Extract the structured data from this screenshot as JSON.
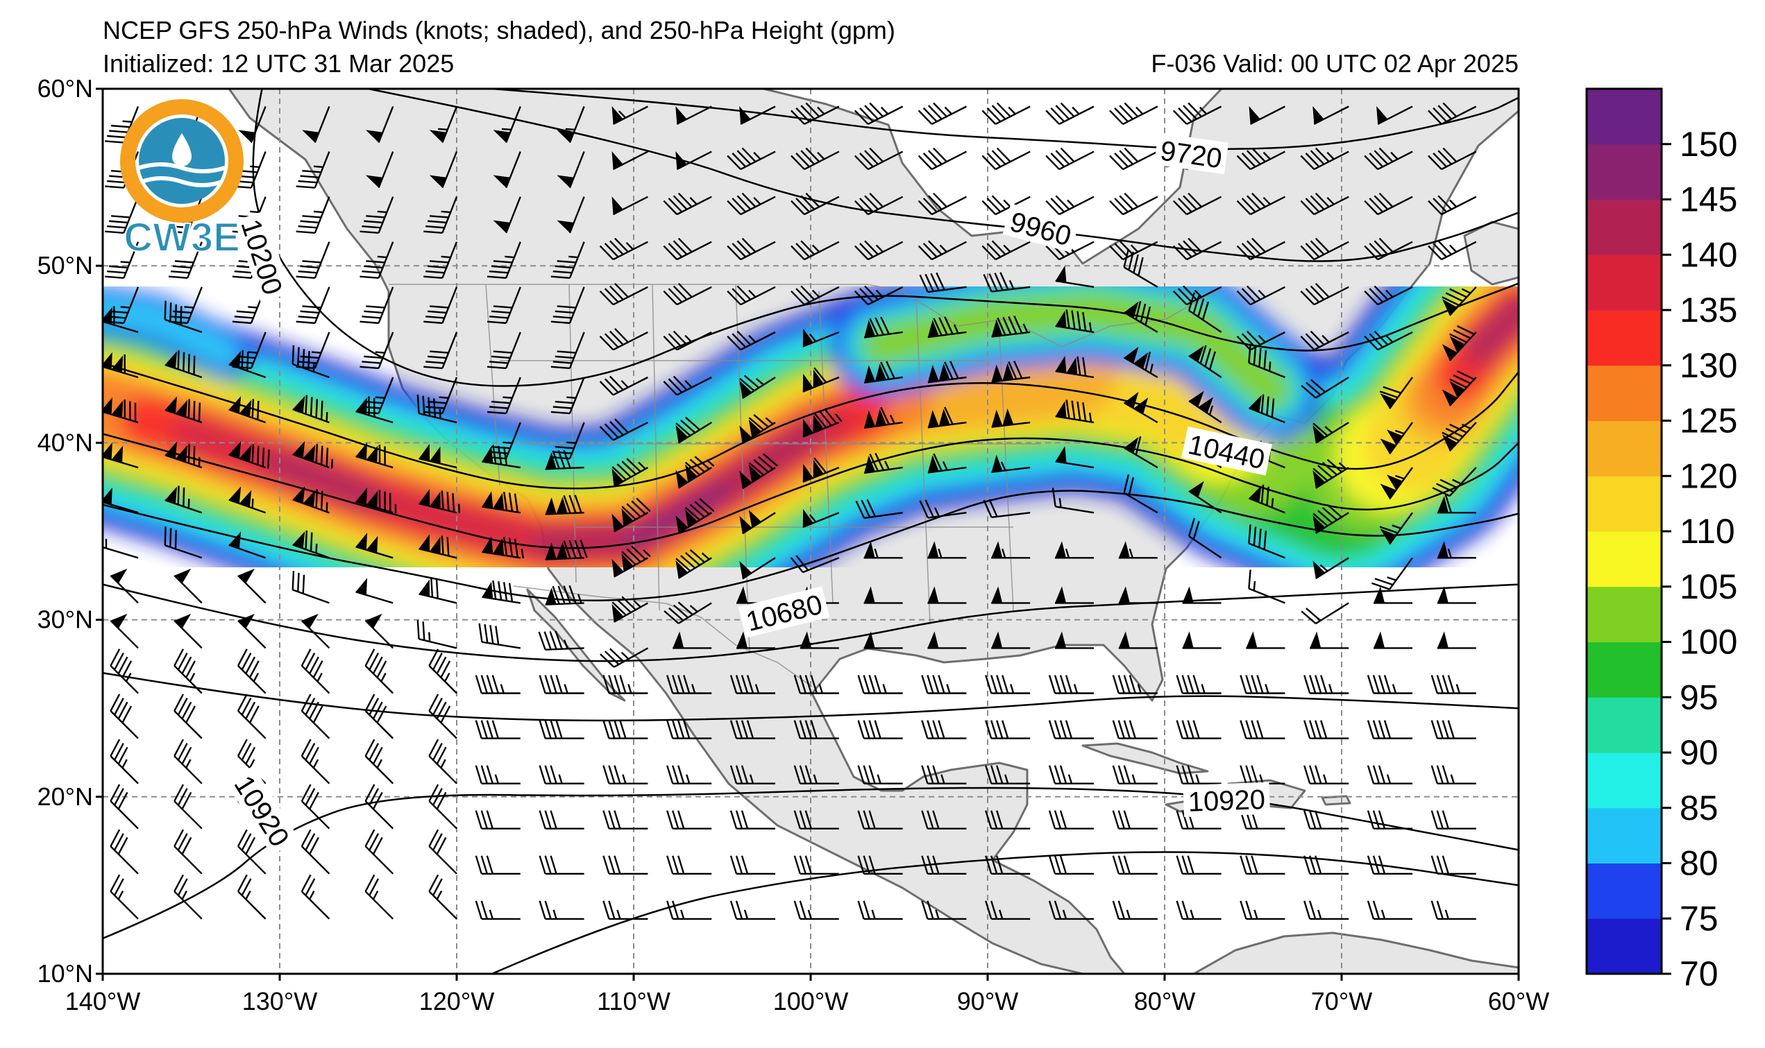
{
  "header": {
    "title": "NCEP GFS 250-hPa Winds (knots; shaded), and 250-hPa Height (gpm)",
    "initialized": "Initialized: 12 UTC 31 Mar 2025",
    "valid": "F-036  Valid: 00 UTC 02 Apr 2025"
  },
  "logo": {
    "text": "CW3E",
    "colors": {
      "orange": "#f5a01e",
      "blue": "#2a8fb8"
    }
  },
  "map": {
    "lon_range": [
      -140,
      -60
    ],
    "lat_range": [
      10,
      60
    ],
    "lon_ticks": [
      {
        "lon": -140,
        "label": "140°W"
      },
      {
        "lon": -130,
        "label": "130°W"
      },
      {
        "lon": -120,
        "label": "120°W"
      },
      {
        "lon": -110,
        "label": "110°W"
      },
      {
        "lon": -100,
        "label": "100°W"
      },
      {
        "lon": -90,
        "label": "90°W"
      },
      {
        "lon": -80,
        "label": "80°W"
      },
      {
        "lon": -70,
        "label": "70°W"
      },
      {
        "lon": -60,
        "label": "60°W"
      }
    ],
    "lat_ticks": [
      {
        "lat": 60,
        "label": "60°N"
      },
      {
        "lat": 50,
        "label": "50°N"
      },
      {
        "lat": 40,
        "label": "40°N"
      },
      {
        "lat": 30,
        "label": "30°N"
      },
      {
        "lat": 20,
        "label": "20°N"
      },
      {
        "lat": 10,
        "label": "10°N"
      }
    ],
    "land_color": "#e6e6e6",
    "coast_color": "#6e6e6e"
  },
  "colorbar": {
    "bounds": [
      70,
      75,
      80,
      85,
      90,
      95,
      100,
      105,
      110,
      120,
      125,
      130,
      135,
      140,
      145,
      150,
      155
    ],
    "colors": [
      "#1c1ccc",
      "#1e42ee",
      "#22c4f8",
      "#22f0e6",
      "#22dca0",
      "#22c02a",
      "#7fd022",
      "#f8f622",
      "#f8d622",
      "#f8ae22",
      "#f87e22",
      "#f82c22",
      "#d8223a",
      "#b02252",
      "#8a2270",
      "#6a2284"
    ],
    "labels": [
      "70",
      "75",
      "80",
      "85",
      "90",
      "95",
      "100",
      "105",
      "110",
      "120",
      "125",
      "130",
      "135",
      "140",
      "145",
      "150"
    ]
  },
  "contour_labels": [
    {
      "text": "9720",
      "lon": -78.5,
      "lat": 56.3,
      "rot": 8
    },
    {
      "text": "9960",
      "lon": -87.0,
      "lat": 52.1,
      "rot": 15
    },
    {
      "text": "10200",
      "lon": -131.0,
      "lat": 50.5,
      "rot": 72
    },
    {
      "text": "10440",
      "lon": -76.5,
      "lat": 39.5,
      "rot": 12
    },
    {
      "text": "10680",
      "lon": -101.5,
      "lat": 30.4,
      "rot": -14
    },
    {
      "text": "10920",
      "lon": -76.5,
      "lat": 19.8,
      "rot": -2
    },
    {
      "text": "10920",
      "lon": -131.0,
      "lat": 19.2,
      "rot": 58
    }
  ],
  "chart_data": {
    "type": "heatmap",
    "variable": "250-hPa wind speed (knots, shaded) with 250-hPa geopotential height contours (gpm)",
    "contour_levels_gpm": [
      9720,
      9960,
      10200,
      10440,
      10680,
      10920
    ],
    "jet_axis": [
      {
        "lon": -140,
        "lat": 42.0,
        "speed": 125
      },
      {
        "lon": -135,
        "lat": 40.5,
        "speed": 135
      },
      {
        "lon": -130,
        "lat": 38.8,
        "speed": 140
      },
      {
        "lon": -125,
        "lat": 37.0,
        "speed": 140
      },
      {
        "lon": -120,
        "lat": 35.5,
        "speed": 135
      },
      {
        "lon": -115,
        "lat": 34.3,
        "speed": 140
      },
      {
        "lon": -110,
        "lat": 34.5,
        "speed": 145
      },
      {
        "lon": -105,
        "lat": 37.3,
        "speed": 145
      },
      {
        "lon": -100,
        "lat": 40.5,
        "speed": 140
      },
      {
        "lon": -95,
        "lat": 42.5,
        "speed": 125
      },
      {
        "lon": -90,
        "lat": 43.2,
        "speed": 120
      },
      {
        "lon": -85,
        "lat": 43.8,
        "speed": 120
      },
      {
        "lon": -80,
        "lat": 43.0,
        "speed": 115
      },
      {
        "lon": -75,
        "lat": 39.5,
        "speed": 100
      },
      {
        "lon": -70,
        "lat": 37.5,
        "speed": 95
      },
      {
        "lon": -66,
        "lat": 40.0,
        "speed": 110
      },
      {
        "lon": -62,
        "lat": 45.5,
        "speed": 140
      },
      {
        "lon": -60,
        "lat": 47.5,
        "speed": 140
      }
    ]
  }
}
